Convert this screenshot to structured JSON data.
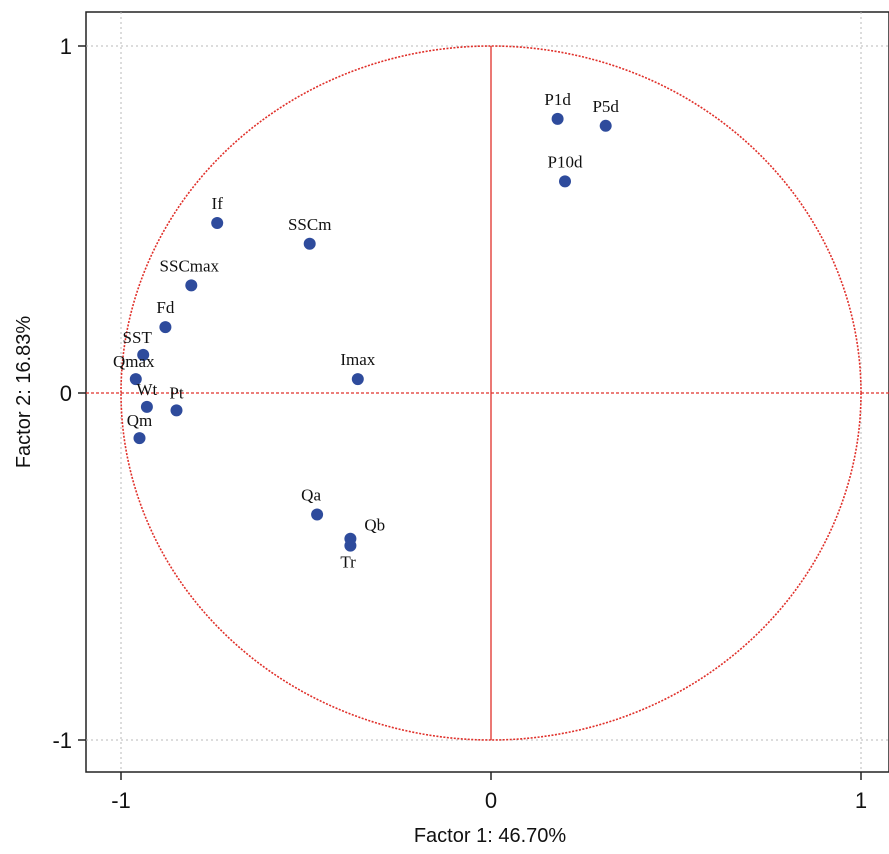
{
  "chart_data": {
    "type": "scatter",
    "title": "",
    "xlabel": "Factor 1: 46.70%",
    "ylabel": "Factor 2: 16.83%",
    "xlim": [
      -1.1,
      1.1
    ],
    "ylim": [
      -1.1,
      1.1
    ],
    "xticks": [
      -1,
      0,
      1
    ],
    "yticks": [
      -1,
      0,
      1
    ],
    "xtick_labels": [
      "-1",
      "0",
      "1"
    ],
    "ytick_labels": [
      "-1",
      "0",
      "1"
    ],
    "grid": true,
    "unit_circle": true,
    "colors": {
      "points": "#2e4b9c",
      "circle": "#e0302a",
      "zero_lines": "#e0302a",
      "grid": "#b8b8b8"
    },
    "points": [
      {
        "label": "P1d",
        "x": 0.18,
        "y": 0.79
      },
      {
        "label": "P5d",
        "x": 0.31,
        "y": 0.77
      },
      {
        "label": "P10d",
        "x": 0.2,
        "y": 0.61
      },
      {
        "label": "If",
        "x": -0.74,
        "y": 0.49
      },
      {
        "label": "SSCm",
        "x": -0.49,
        "y": 0.43
      },
      {
        "label": "SSCmax",
        "x": -0.81,
        "y": 0.31
      },
      {
        "label": "Fd",
        "x": -0.88,
        "y": 0.19
      },
      {
        "label": "SST",
        "x": -0.94,
        "y": 0.11
      },
      {
        "label": "Qmax",
        "x": -0.96,
        "y": 0.04
      },
      {
        "label": "Imax",
        "x": -0.36,
        "y": 0.04
      },
      {
        "label": "Wt",
        "x": -0.93,
        "y": -0.04
      },
      {
        "label": "Pt",
        "x": -0.85,
        "y": -0.05
      },
      {
        "label": "Qm",
        "x": -0.95,
        "y": -0.13
      },
      {
        "label": "Qa",
        "x": -0.47,
        "y": -0.35
      },
      {
        "label": "Qb",
        "x": -0.38,
        "y": -0.42
      },
      {
        "label": "Tr",
        "x": -0.38,
        "y": -0.44
      }
    ]
  }
}
